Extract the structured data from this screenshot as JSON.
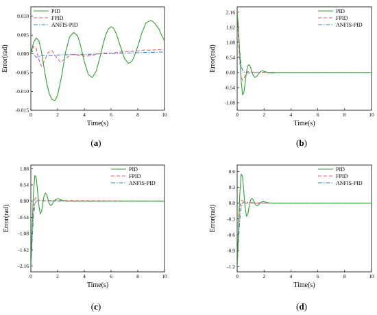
{
  "colors": {
    "pid": "#2ca02c",
    "fpid": "#e8596e",
    "anfis": "#3c7fd6"
  },
  "chart_data": [
    {
      "id": "a",
      "type": "line",
      "caption": "a",
      "xlabel": "Time(s)",
      "ylabel": "Error(rad)",
      "xlim": [
        0,
        10
      ],
      "ylim": [
        -0.015,
        0.0125
      ],
      "xticks": [
        0,
        2,
        4,
        6,
        8,
        10
      ],
      "xtick_labels": [
        "0",
        "2",
        "4",
        "6",
        "8",
        "10"
      ],
      "yticks": [
        0.01,
        0.005,
        0.0,
        -0.005,
        -0.01,
        -0.015
      ],
      "ytick_labels": [
        "0.010",
        "0.005",
        "0.000",
        "-0.005",
        "-0.010",
        "-0.015"
      ],
      "legend": "top-left",
      "series": [
        {
          "name": "PID",
          "key": "pid",
          "style": "solid",
          "x": [
            0,
            0.2,
            0.4,
            0.6,
            0.8,
            1.0,
            1.2,
            1.4,
            1.6,
            1.8,
            2.0,
            2.3,
            2.6,
            2.9,
            3.2,
            3.5,
            3.7,
            4.0,
            4.3,
            4.6,
            4.9,
            5.2,
            5.4,
            5.6,
            5.8,
            6.0,
            6.2,
            6.4,
            6.7,
            7.0,
            7.3,
            7.5,
            7.7,
            8.0,
            8.3,
            8.6,
            8.9,
            9.1,
            9.3,
            9.6,
            9.8,
            10.0
          ],
          "y": [
            0.0,
            0.003,
            0.0042,
            0.0035,
            0.0005,
            -0.004,
            -0.008,
            -0.0108,
            -0.0122,
            -0.0124,
            -0.011,
            -0.006,
            0.0005,
            0.0045,
            0.0057,
            0.0048,
            0.0025,
            -0.002,
            -0.0055,
            -0.0063,
            -0.0045,
            -0.0005,
            0.0025,
            0.005,
            0.0066,
            0.0072,
            0.0068,
            0.0053,
            0.002,
            -0.0012,
            -0.0025,
            -0.0022,
            -0.001,
            0.002,
            0.0055,
            0.0082,
            0.0088,
            0.0087,
            0.008,
            0.0065,
            0.0048,
            0.0035
          ]
        },
        {
          "name": "FPID",
          "key": "fpid",
          "style": "dashed",
          "x": [
            0,
            0.2,
            0.4,
            0.6,
            0.8,
            1.0,
            1.3,
            1.6,
            1.9,
            2.2,
            2.5,
            3.0,
            3.5,
            4.0,
            4.5,
            5.0,
            5.5,
            6.0,
            6.5,
            7.0,
            7.5,
            8.0,
            8.5,
            9.0,
            9.5,
            10.0
          ],
          "y": [
            0.0,
            0.002,
            0.0015,
            -0.0015,
            -0.0033,
            -0.002,
            0.0004,
            0.0008,
            -0.0008,
            -0.0022,
            -0.0015,
            -0.0002,
            -0.0003,
            -0.0006,
            -0.0005,
            0.0,
            0.0002,
            0.0002,
            0.0004,
            0.0006,
            0.0006,
            0.0008,
            0.001,
            0.001,
            0.0011,
            0.0012
          ]
        },
        {
          "name": "ANFIS-PID",
          "key": "anfis",
          "style": "dashdot",
          "x": [
            0,
            0.15,
            0.3,
            0.45,
            0.6,
            0.8,
            1.0,
            1.5,
            2.0,
            3.0,
            4.0,
            5.0,
            6.0,
            7.0,
            8.0,
            9.0,
            10.0
          ],
          "y": [
            0.0015,
            0.0005,
            -0.0005,
            -0.001,
            -0.0008,
            -0.0003,
            -0.0004,
            -0.0004,
            -0.0003,
            -0.0002,
            -0.0002,
            0.0,
            0.0001,
            0.0002,
            0.0003,
            0.0004,
            0.0005
          ]
        }
      ]
    },
    {
      "id": "b",
      "type": "line",
      "caption": "b",
      "xlabel": "Time(s)",
      "ylabel": "Error(rad)",
      "xlim": [
        0,
        10
      ],
      "ylim": [
        -1.35,
        2.35
      ],
      "xticks": [
        0,
        2,
        4,
        6,
        8,
        10
      ],
      "xtick_labels": [
        "0",
        "2",
        "4",
        "6",
        "8",
        "10"
      ],
      "yticks": [
        2.16,
        1.62,
        1.08,
        0.54,
        0.0,
        -0.54,
        -1.08
      ],
      "ytick_labels": [
        "2.16",
        "1.62",
        "1.08",
        "0.54",
        "0.00",
        "-0.54",
        "-1.08"
      ],
      "legend": "top-right",
      "series": [
        {
          "name": "PID",
          "key": "pid",
          "style": "solid",
          "x": [
            0,
            0.05,
            0.1,
            0.2,
            0.3,
            0.4,
            0.5,
            0.6,
            0.7,
            0.8,
            0.9,
            1.0,
            1.1,
            1.2,
            1.3,
            1.45,
            1.6,
            1.75,
            1.9,
            2.1,
            2.3,
            2.6,
            3.0,
            4.0,
            5.0,
            10.0
          ],
          "y": [
            2.16,
            1.9,
            1.55,
            0.6,
            -0.3,
            -0.8,
            -0.72,
            -0.35,
            0.05,
            0.25,
            0.28,
            0.18,
            0.02,
            -0.1,
            -0.17,
            -0.14,
            -0.04,
            0.04,
            0.06,
            0.03,
            -0.01,
            -0.02,
            0.0,
            0.0,
            0.0,
            0.0
          ]
        },
        {
          "name": "FPID",
          "key": "fpid",
          "style": "dashed",
          "x": [
            0,
            0.05,
            0.1,
            0.2,
            0.3,
            0.4,
            0.5,
            0.6,
            0.7,
            0.8,
            1.0,
            1.5,
            2.0,
            3.0,
            10.0
          ],
          "y": [
            2.16,
            1.7,
            1.2,
            0.35,
            -0.15,
            -0.28,
            -0.22,
            -0.1,
            0.0,
            0.04,
            0.02,
            0.0,
            0.0,
            0.0,
            0.0
          ]
        },
        {
          "name": "ANFIS-PID",
          "key": "anfis",
          "style": "dashdot",
          "x": [
            0,
            0.1,
            0.2,
            0.3,
            0.4,
            0.5,
            0.6,
            0.8,
            1.0,
            1.5,
            2.0,
            10.0
          ],
          "y": [
            2.16,
            1.4,
            0.7,
            0.25,
            0.08,
            0.02,
            0.0,
            -0.02,
            -0.01,
            0.0,
            0.0,
            0.0
          ]
        }
      ]
    },
    {
      "id": "c",
      "type": "line",
      "caption": "c",
      "xlabel": "Time(s)",
      "ylabel": "Error(rad)",
      "xlim": [
        0,
        10
      ],
      "ylim": [
        -2.35,
        1.2
      ],
      "xticks": [
        0,
        2,
        4,
        6,
        8,
        10
      ],
      "xtick_labels": [
        "0",
        "2",
        "4",
        "6",
        "8",
        "10"
      ],
      "yticks": [
        1.08,
        0.54,
        0.0,
        -0.54,
        -1.08,
        -1.62,
        -2.16
      ],
      "ytick_labels": [
        "1.08",
        "0.54",
        "0.00",
        "-0.54",
        "-1.08",
        "-1.62",
        "-2.16"
      ],
      "legend": "top-right",
      "series": [
        {
          "name": "PID",
          "key": "pid",
          "style": "solid",
          "x": [
            0,
            0.05,
            0.1,
            0.2,
            0.3,
            0.4,
            0.5,
            0.6,
            0.7,
            0.8,
            0.9,
            1.0,
            1.1,
            1.2,
            1.3,
            1.4,
            1.5,
            1.6,
            1.7,
            1.8,
            2.0,
            2.2,
            2.4,
            2.7,
            3.0,
            4.0,
            10.0
          ],
          "y": [
            -2.16,
            -1.6,
            -0.8,
            0.3,
            0.85,
            0.78,
            0.35,
            -0.15,
            -0.42,
            -0.35,
            -0.05,
            0.2,
            0.27,
            0.2,
            0.03,
            -0.1,
            -0.15,
            -0.1,
            -0.02,
            0.04,
            0.08,
            0.06,
            0.02,
            0.0,
            0.0,
            0.0,
            0.0
          ]
        },
        {
          "name": "FPID",
          "key": "fpid",
          "style": "dashed",
          "x": [
            0,
            0.05,
            0.1,
            0.2,
            0.3,
            0.4,
            0.5,
            0.6,
            0.8,
            1.0,
            1.5,
            2.0,
            10.0
          ],
          "y": [
            -2.16,
            -1.5,
            -0.9,
            -0.25,
            0.05,
            0.12,
            0.08,
            0.03,
            0.0,
            0.01,
            0.02,
            0.02,
            0.0
          ]
        },
        {
          "name": "ANFIS-PID",
          "key": "anfis",
          "style": "dashdot",
          "x": [
            0,
            0.05,
            0.1,
            0.2,
            0.3,
            0.4,
            0.6,
            0.8,
            1.0,
            2.0,
            10.0
          ],
          "y": [
            -2.16,
            -1.8,
            -1.3,
            -0.5,
            -0.1,
            0.0,
            0.02,
            0.02,
            0.01,
            0.0,
            0.0
          ]
        }
      ]
    },
    {
      "id": "d",
      "type": "line",
      "caption": "d",
      "xlabel": "Time(s)",
      "ylabel": "Error(rad)",
      "xlim": [
        0,
        10
      ],
      "ylim": [
        -1.3,
        0.72
      ],
      "xticks": [
        0,
        2,
        4,
        6,
        8,
        10
      ],
      "xtick_labels": [
        "0",
        "2",
        "4",
        "6",
        "8",
        "10"
      ],
      "yticks": [
        0.6,
        0.3,
        0.0,
        -0.3,
        -0.6,
        -0.9,
        -1.2
      ],
      "ytick_labels": [
        "0.6",
        "0.3",
        "0.0",
        "-0.3",
        "-0.6",
        "-0.9",
        "-1.2"
      ],
      "legend": "top-right",
      "series": [
        {
          "name": "PID",
          "key": "pid",
          "style": "solid",
          "x": [
            0,
            0.05,
            0.1,
            0.2,
            0.3,
            0.4,
            0.5,
            0.6,
            0.7,
            0.8,
            0.9,
            1.0,
            1.1,
            1.2,
            1.3,
            1.4,
            1.5,
            1.6,
            1.7,
            1.8,
            2.0,
            2.2,
            2.5,
            3.0,
            4.0,
            10.0
          ],
          "y": [
            -1.2,
            -0.85,
            -0.45,
            0.2,
            0.55,
            0.5,
            0.2,
            -0.1,
            -0.25,
            -0.2,
            -0.05,
            0.06,
            0.09,
            0.06,
            0.0,
            -0.04,
            -0.05,
            -0.03,
            0.0,
            0.02,
            0.03,
            0.01,
            0.0,
            0.0,
            0.0,
            0.0
          ]
        },
        {
          "name": "FPID",
          "key": "fpid",
          "style": "dashed",
          "x": [
            0,
            0.05,
            0.1,
            0.2,
            0.3,
            0.4,
            0.5,
            0.6,
            0.8,
            1.0,
            2.0,
            10.0
          ],
          "y": [
            -1.2,
            -0.8,
            -0.5,
            -0.1,
            0.05,
            0.05,
            0.02,
            0.0,
            0.0,
            0.0,
            0.0,
            0.0
          ]
        },
        {
          "name": "ANFIS-PID",
          "key": "anfis",
          "style": "dashdot",
          "x": [
            0,
            0.05,
            0.1,
            0.2,
            0.3,
            0.4,
            0.5,
            0.7,
            1.0,
            2.0,
            10.0
          ],
          "y": [
            -1.2,
            -0.95,
            -0.7,
            -0.3,
            -0.08,
            0.0,
            0.02,
            0.02,
            0.01,
            0.0,
            0.0
          ]
        }
      ]
    }
  ]
}
